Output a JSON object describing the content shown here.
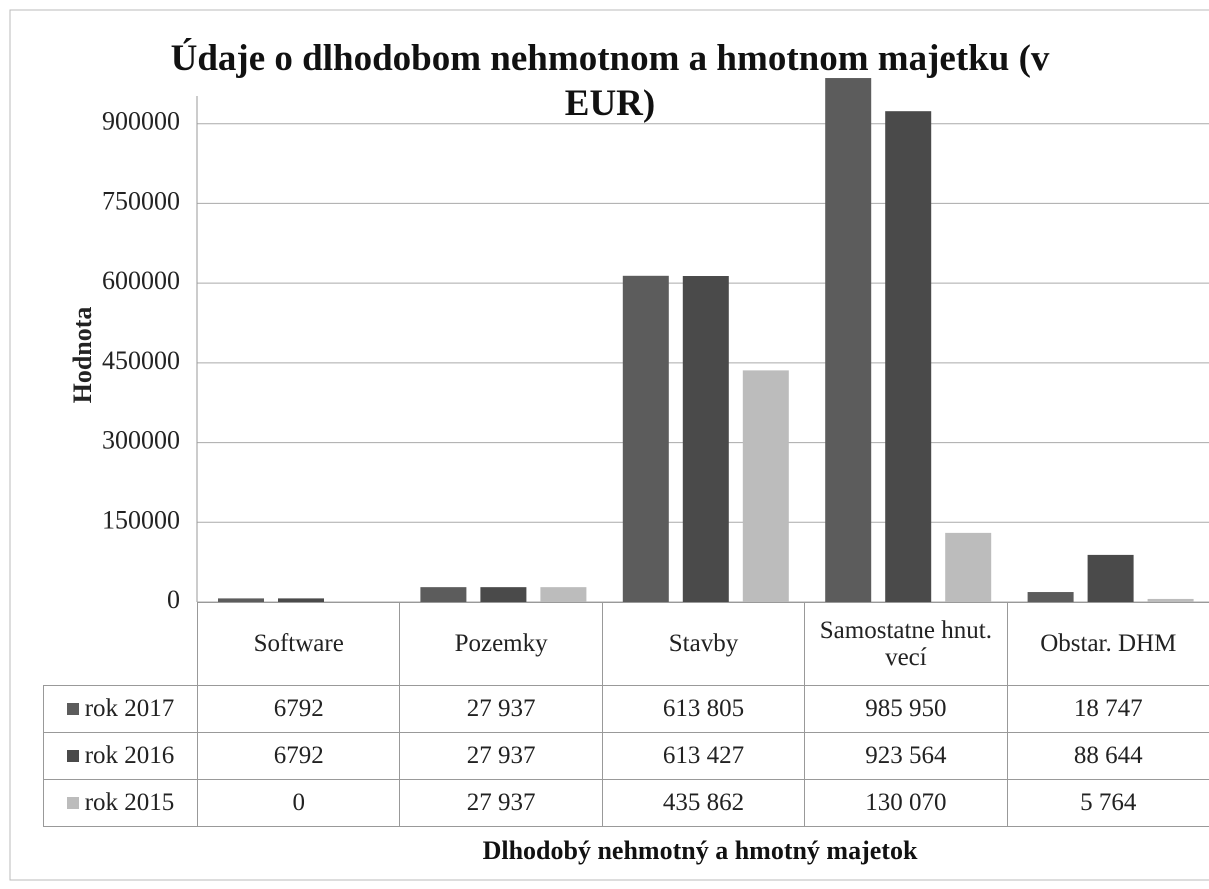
{
  "chart_data": {
    "type": "bar",
    "title": "Údaje o dlhodobom nehmotnom a hmotnom majetku (v EUR)",
    "x_label": "Dlhodobý nehmotný a hmotný majetok",
    "y_label": "Hodnota",
    "categories": [
      "Software",
      "Pozemky",
      "Stavby",
      "Samostatne hnut. vecí",
      "Obstar. DHM"
    ],
    "series": [
      {
        "name": "rok 2017",
        "color": "#5c5c5c",
        "values": [
          6792,
          27937,
          613805,
          985950,
          18747
        ],
        "value_labels": [
          "6792",
          "27 937",
          "613 805",
          "985 950",
          "18 747"
        ]
      },
      {
        "name": "rok 2016",
        "color": "#4a4a4a",
        "values": [
          6792,
          27937,
          613427,
          923564,
          88644
        ],
        "value_labels": [
          "6792",
          "27 937",
          "613 427",
          "923 564",
          "88 644"
        ]
      },
      {
        "name": "rok 2015",
        "color": "#bcbcbc",
        "values": [
          0,
          27937,
          435862,
          130070,
          5764
        ],
        "value_labels": [
          "0",
          "27 937",
          "435 862",
          "130 070",
          "5 764"
        ]
      }
    ],
    "ylim": [
      0,
      1050000
    ],
    "yticks": [
      0,
      150000,
      300000,
      450000,
      600000,
      750000,
      900000
    ],
    "grid": true
  }
}
